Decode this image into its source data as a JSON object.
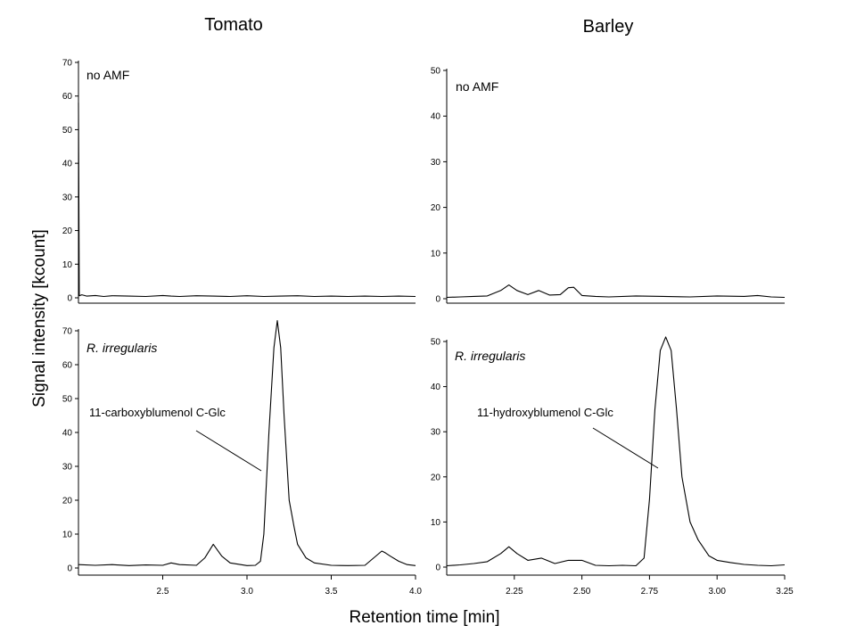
{
  "figure": {
    "column_titles": [
      "Tomato",
      "Barley"
    ],
    "ylabel": "Signal intensity [kcount]",
    "xlabel": "Retention time [min]"
  },
  "chart_data": [
    {
      "type": "line",
      "column": "Tomato",
      "panel_label": "no AMF",
      "panel_label_italic": false,
      "xlim": [
        2.0,
        4.0
      ],
      "ylim": [
        0,
        70
      ],
      "xticks": [],
      "yticks": [
        0,
        10,
        20,
        30,
        40,
        50,
        60,
        70
      ],
      "series": [
        {
          "x": [
            2.0,
            2.005,
            2.02,
            2.05,
            2.1,
            2.15,
            2.2,
            2.3,
            2.4,
            2.5,
            2.55,
            2.6,
            2.7,
            2.8,
            2.9,
            3.0,
            3.1,
            3.2,
            3.3,
            3.4,
            3.5,
            3.6,
            3.7,
            3.8,
            3.9,
            4.0
          ],
          "y": [
            58,
            0.6,
            0.9,
            0.5,
            0.7,
            0.4,
            0.6,
            0.5,
            0.4,
            0.7,
            0.5,
            0.4,
            0.6,
            0.5,
            0.4,
            0.6,
            0.4,
            0.5,
            0.6,
            0.4,
            0.5,
            0.4,
            0.5,
            0.4,
            0.5,
            0.4
          ]
        }
      ]
    },
    {
      "type": "line",
      "column": "Tomato",
      "panel_label": "R. irregularis",
      "panel_label_italic": true,
      "annotation": "11-carboxyblumenol  C-Glc",
      "xlim": [
        2.0,
        4.0
      ],
      "ylim": [
        0,
        70
      ],
      "xticks": [
        2.5,
        3.0,
        3.5,
        4.0
      ],
      "xtick_labels": [
        "2.5",
        "3.0",
        "3.5",
        "4.0"
      ],
      "yticks": [
        0,
        10,
        20,
        30,
        40,
        50,
        60,
        70
      ],
      "series": [
        {
          "x": [
            2.0,
            2.1,
            2.2,
            2.3,
            2.4,
            2.5,
            2.55,
            2.6,
            2.7,
            2.75,
            2.8,
            2.85,
            2.9,
            3.0,
            3.05,
            3.08,
            3.1,
            3.13,
            3.16,
            3.18,
            3.2,
            3.22,
            3.25,
            3.28,
            3.3,
            3.35,
            3.4,
            3.5,
            3.6,
            3.7,
            3.8,
            3.82,
            3.85,
            3.9,
            3.95,
            4.0
          ],
          "y": [
            1.0,
            0.8,
            1.0,
            0.7,
            0.9,
            0.8,
            1.5,
            1.0,
            0.8,
            3.0,
            7.0,
            3.5,
            1.5,
            0.7,
            0.8,
            2.0,
            10,
            40,
            65,
            73,
            65,
            45,
            20,
            12,
            7,
            3,
            1.5,
            0.8,
            0.7,
            0.8,
            5.0,
            4.5,
            3.5,
            2.0,
            1.0,
            0.7
          ]
        }
      ]
    },
    {
      "type": "line",
      "column": "Barley",
      "panel_label": "no AMF",
      "panel_label_italic": false,
      "xlim": [
        2.0,
        3.25
      ],
      "ylim": [
        0,
        50
      ],
      "xticks": [],
      "yticks": [
        0,
        10,
        20,
        30,
        40,
        50
      ],
      "series": [
        {
          "x": [
            2.0,
            2.05,
            2.1,
            2.15,
            2.2,
            2.23,
            2.26,
            2.3,
            2.34,
            2.38,
            2.42,
            2.45,
            2.47,
            2.5,
            2.55,
            2.6,
            2.7,
            2.8,
            2.9,
            3.0,
            3.1,
            3.15,
            3.2,
            3.25
          ],
          "y": [
            0.3,
            0.4,
            0.5,
            0.6,
            1.8,
            3.0,
            1.8,
            0.9,
            1.8,
            0.8,
            0.9,
            2.4,
            2.5,
            0.7,
            0.5,
            0.4,
            0.6,
            0.5,
            0.4,
            0.6,
            0.5,
            0.7,
            0.4,
            0.3
          ]
        }
      ]
    },
    {
      "type": "line",
      "column": "Barley",
      "panel_label": "R. irregularis",
      "panel_label_italic": true,
      "annotation": "11-hydroxyblumenol  C-Glc",
      "xlim": [
        2.0,
        3.25
      ],
      "ylim": [
        0,
        50
      ],
      "xticks": [
        2.25,
        2.5,
        2.75,
        3.0,
        3.25
      ],
      "xtick_labels": [
        "2.25",
        "2.50",
        "2.75",
        "3.00",
        "3.25"
      ],
      "yticks": [
        0,
        10,
        20,
        30,
        40,
        50
      ],
      "series": [
        {
          "x": [
            2.0,
            2.05,
            2.1,
            2.15,
            2.2,
            2.23,
            2.26,
            2.3,
            2.35,
            2.4,
            2.45,
            2.5,
            2.55,
            2.6,
            2.65,
            2.7,
            2.73,
            2.75,
            2.77,
            2.79,
            2.81,
            2.83,
            2.85,
            2.87,
            2.9,
            2.93,
            2.97,
            3.0,
            3.05,
            3.1,
            3.15,
            3.2,
            3.25
          ],
          "y": [
            0.3,
            0.5,
            0.8,
            1.2,
            3.0,
            4.5,
            3.0,
            1.5,
            2.0,
            0.8,
            1.5,
            1.5,
            0.4,
            0.3,
            0.4,
            0.3,
            2.0,
            15,
            35,
            48,
            51,
            48,
            35,
            20,
            10,
            6,
            2.5,
            1.5,
            1.0,
            0.6,
            0.4,
            0.3,
            0.5
          ]
        }
      ]
    }
  ]
}
